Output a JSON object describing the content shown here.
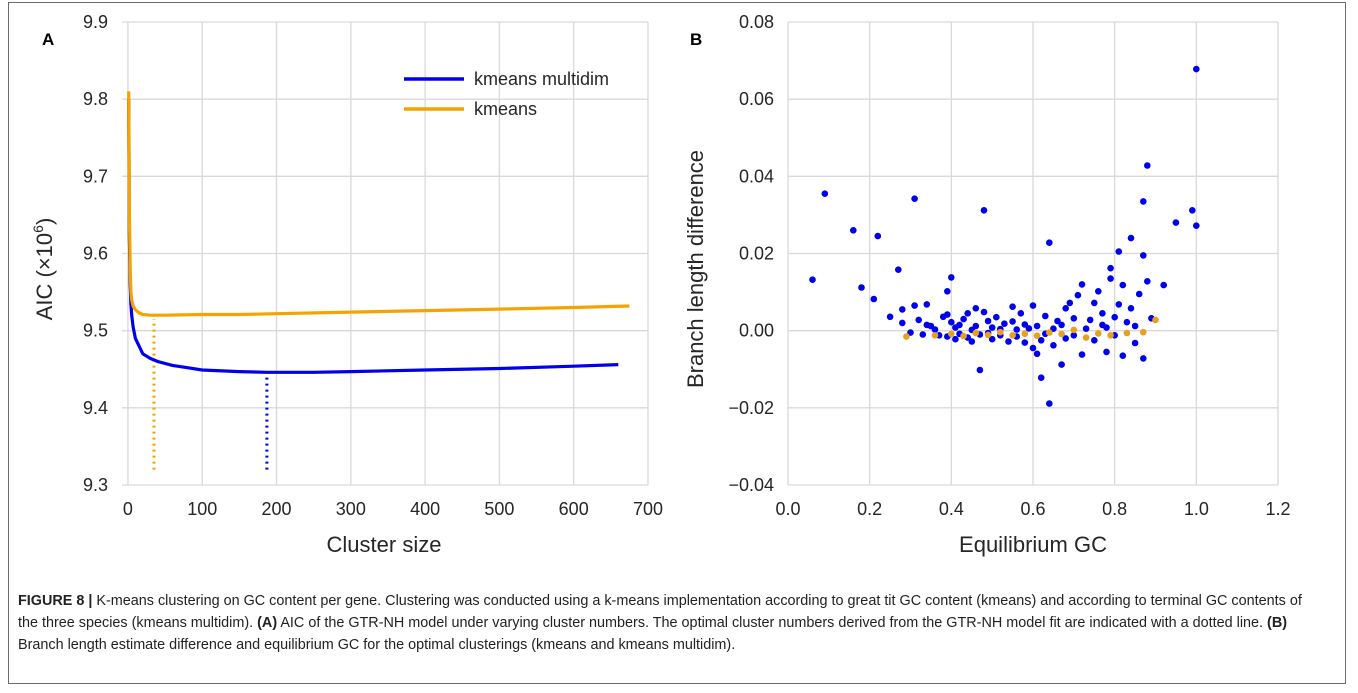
{
  "figure": {
    "number_label": "FIGURE 8 |",
    "caption_parts": [
      {
        "text": " K-means clustering on GC content per gene. Clustering was conducted using a k-means implementation according to great tit GC content (kmeans) and according to terminal GC contents of the three species (kmeans multidim). ",
        "bold": false
      },
      {
        "text": "(A)",
        "bold": true
      },
      {
        "text": " AIC of the GTR-NH model under varying cluster numbers. The optimal cluster numbers derived from the GTR-NH model fit are indicated with a dotted line. ",
        "bold": false
      },
      {
        "text": "(B)",
        "bold": true
      },
      {
        "text": " Branch length estimate difference and equilibrium GC for the optimal clusterings (kmeans and kmeans multidim).",
        "bold": false
      }
    ]
  },
  "colors": {
    "kmeans_multidim": "#0000ee",
    "kmeans": "#f5a300",
    "kmeans_scatter": "#e8a020",
    "grid": "#d9d9d9"
  },
  "chart_data": [
    {
      "type": "line",
      "panel_label": "A",
      "xlabel": "Cluster size",
      "ylabel": "AIC (×10",
      "ylabel_sup": "6",
      "ylabel_close": ")",
      "xlim": [
        -8,
        700
      ],
      "ylim": [
        9.3,
        9.9
      ],
      "xticks": [
        0,
        100,
        200,
        300,
        400,
        500,
        600,
        700
      ],
      "yticks": [
        9.3,
        9.4,
        9.5,
        9.6,
        9.7,
        9.8,
        9.9
      ],
      "xtick_labels": [
        "0",
        "100",
        "200",
        "300",
        "400",
        "500",
        "600",
        "700"
      ],
      "ytick_labels": [
        "9.3",
        "9.4",
        "9.5",
        "9.6",
        "9.7",
        "9.8",
        "9.9"
      ],
      "grid": true,
      "legend_position": "top-right",
      "series": [
        {
          "name": "kmeans multidim",
          "color_key": "kmeans_multidim",
          "x": [
            1,
            2,
            3,
            4,
            5,
            7,
            10,
            15,
            20,
            30,
            40,
            60,
            80,
            100,
            150,
            187,
            250,
            300,
            400,
            500,
            600,
            660
          ],
          "y": [
            9.8,
            9.62,
            9.56,
            9.535,
            9.52,
            9.505,
            9.49,
            9.48,
            9.47,
            9.464,
            9.46,
            9.455,
            9.452,
            9.449,
            9.447,
            9.446,
            9.446,
            9.447,
            9.449,
            9.451,
            9.454,
            9.456
          ]
        },
        {
          "name": "kmeans",
          "color_key": "kmeans",
          "x": [
            1,
            2,
            3,
            4,
            5,
            7,
            10,
            15,
            20,
            30,
            35,
            50,
            100,
            150,
            200,
            300,
            400,
            500,
            600,
            675
          ],
          "y": [
            9.81,
            9.65,
            9.58,
            9.55,
            9.54,
            9.532,
            9.527,
            9.523,
            9.521,
            9.52,
            9.52,
            9.52,
            9.521,
            9.521,
            9.522,
            9.524,
            9.526,
            9.528,
            9.53,
            9.532
          ]
        }
      ],
      "optimal_markers": [
        {
          "series": "kmeans",
          "x": 35,
          "y_from": 9.32,
          "y_to": 9.515
        },
        {
          "series": "kmeans multidim",
          "x": 187,
          "y_from": 9.32,
          "y_to": 9.44
        }
      ]
    },
    {
      "type": "scatter",
      "panel_label": "B",
      "xlabel": "Equilibrium GC",
      "ylabel": "Branch length difference",
      "xlim": [
        0.0,
        1.2
      ],
      "ylim": [
        -0.04,
        0.08
      ],
      "xticks": [
        0.0,
        0.2,
        0.4,
        0.6,
        0.8,
        1.0,
        1.2
      ],
      "yticks": [
        -0.04,
        -0.02,
        0.0,
        0.02,
        0.04,
        0.06,
        0.08
      ],
      "xtick_labels": [
        "0.0",
        "0.2",
        "0.4",
        "0.6",
        "0.8",
        "1.0",
        "1.2"
      ],
      "ytick_labels": [
        "−0.04",
        "−0.02",
        "0.00",
        "0.02",
        "0.04",
        "0.06",
        "0.08"
      ],
      "grid": true,
      "series": [
        {
          "name": "kmeans multidim",
          "color_key": "kmeans_multidim",
          "points": [
            [
              0.06,
              0.0132
            ],
            [
              0.09,
              0.0355
            ],
            [
              0.16,
              0.026
            ],
            [
              0.18,
              0.0112
            ],
            [
              0.21,
              0.0082
            ],
            [
              0.22,
              0.0245
            ],
            [
              0.25,
              0.0036
            ],
            [
              0.27,
              0.0158
            ],
            [
              0.28,
              0.0055
            ],
            [
              0.28,
              0.002
            ],
            [
              0.3,
              -0.0005
            ],
            [
              0.31,
              0.0342
            ],
            [
              0.31,
              0.0065
            ],
            [
              0.32,
              0.0028
            ],
            [
              0.33,
              -0.001
            ],
            [
              0.34,
              0.0015
            ],
            [
              0.34,
              0.0068
            ],
            [
              0.35,
              0.0012
            ],
            [
              0.36,
              0.0003
            ],
            [
              0.37,
              -0.0012
            ],
            [
              0.38,
              0.0036
            ],
            [
              0.39,
              -0.0015
            ],
            [
              0.39,
              0.0042
            ],
            [
              0.39,
              0.0102
            ],
            [
              0.4,
              0.0138
            ],
            [
              0.4,
              0.0022
            ],
            [
              0.41,
              -0.0022
            ],
            [
              0.41,
              0.0008
            ],
            [
              0.42,
              0.0015
            ],
            [
              0.42,
              -0.0008
            ],
            [
              0.43,
              0.003
            ],
            [
              0.44,
              -0.0018
            ],
            [
              0.44,
              0.0045
            ],
            [
              0.45,
              0.0002
            ],
            [
              0.45,
              -0.0028
            ],
            [
              0.46,
              0.0012
            ],
            [
              0.46,
              0.0058
            ],
            [
              0.47,
              -0.001
            ],
            [
              0.47,
              -0.0102
            ],
            [
              0.48,
              0.0048
            ],
            [
              0.48,
              0.0312
            ],
            [
              0.49,
              0.0025
            ],
            [
              0.49,
              -0.0006
            ],
            [
              0.5,
              0.0008
            ],
            [
              0.5,
              -0.0022
            ],
            [
              0.51,
              0.0035
            ],
            [
              0.52,
              -0.0012
            ],
            [
              0.52,
              0.0004
            ],
            [
              0.53,
              0.0018
            ],
            [
              0.54,
              -0.0028
            ],
            [
              0.55,
              0.0062
            ],
            [
              0.55,
              0.0024
            ],
            [
              0.56,
              -0.0015
            ],
            [
              0.56,
              0.0003
            ],
            [
              0.57,
              0.0045
            ],
            [
              0.58,
              -0.0031
            ],
            [
              0.58,
              0.0016
            ],
            [
              0.59,
              0.0006
            ],
            [
              0.6,
              -0.0045
            ],
            [
              0.6,
              0.0065
            ],
            [
              0.61,
              -0.006
            ],
            [
              0.61,
              0.0012
            ],
            [
              0.62,
              -0.0025
            ],
            [
              0.62,
              -0.0122
            ],
            [
              0.63,
              0.0038
            ],
            [
              0.63,
              -0.0008
            ],
            [
              0.64,
              -0.0189
            ],
            [
              0.64,
              0.0228
            ],
            [
              0.65,
              0.0005
            ],
            [
              0.65,
              -0.0038
            ],
            [
              0.66,
              0.0025
            ],
            [
              0.67,
              -0.0088
            ],
            [
              0.67,
              0.0015
            ],
            [
              0.68,
              0.0058
            ],
            [
              0.68,
              -0.002
            ],
            [
              0.69,
              0.0072
            ],
            [
              0.7,
              0.0032
            ],
            [
              0.7,
              -0.0012
            ],
            [
              0.71,
              0.0092
            ],
            [
              0.72,
              -0.0062
            ],
            [
              0.72,
              0.012
            ],
            [
              0.73,
              0.0005
            ],
            [
              0.74,
              0.0028
            ],
            [
              0.75,
              0.0072
            ],
            [
              0.75,
              -0.0025
            ],
            [
              0.76,
              0.0102
            ],
            [
              0.77,
              0.0045
            ],
            [
              0.77,
              0.0015
            ],
            [
              0.78,
              -0.0055
            ],
            [
              0.78,
              0.0008
            ],
            [
              0.79,
              0.0135
            ],
            [
              0.79,
              0.0162
            ],
            [
              0.8,
              0.0035
            ],
            [
              0.8,
              -0.0012
            ],
            [
              0.81,
              0.0068
            ],
            [
              0.81,
              0.0205
            ],
            [
              0.82,
              -0.0065
            ],
            [
              0.82,
              0.0118
            ],
            [
              0.83,
              0.0022
            ],
            [
              0.84,
              0.0058
            ],
            [
              0.84,
              0.024
            ],
            [
              0.85,
              0.0012
            ],
            [
              0.85,
              -0.0032
            ],
            [
              0.86,
              0.0095
            ],
            [
              0.87,
              0.0335
            ],
            [
              0.87,
              0.0195
            ],
            [
              0.87,
              -0.0072
            ],
            [
              0.88,
              0.0428
            ],
            [
              0.88,
              0.0128
            ],
            [
              0.89,
              0.0032
            ],
            [
              0.92,
              0.0118
            ],
            [
              0.95,
              0.028
            ],
            [
              0.99,
              0.0312
            ],
            [
              1.0,
              0.0272
            ],
            [
              1.0,
              0.0678
            ]
          ]
        },
        {
          "name": "kmeans",
          "color_key": "kmeans_scatter",
          "points": [
            [
              0.29,
              -0.0015
            ],
            [
              0.36,
              -0.0012
            ],
            [
              0.4,
              -0.0008
            ],
            [
              0.43,
              -0.0014
            ],
            [
              0.46,
              -0.0006
            ],
            [
              0.49,
              -0.0011
            ],
            [
              0.52,
              -0.0004
            ],
            [
              0.55,
              -0.0012
            ],
            [
              0.58,
              -0.0008
            ],
            [
              0.61,
              -0.0013
            ],
            [
              0.64,
              -0.0005
            ],
            [
              0.67,
              -0.0009
            ],
            [
              0.7,
              0.0002
            ],
            [
              0.73,
              -0.0018
            ],
            [
              0.76,
              -0.0007
            ],
            [
              0.79,
              -0.0012
            ],
            [
              0.83,
              -0.0006
            ],
            [
              0.87,
              -0.0004
            ],
            [
              0.9,
              0.0028
            ]
          ]
        }
      ]
    }
  ]
}
